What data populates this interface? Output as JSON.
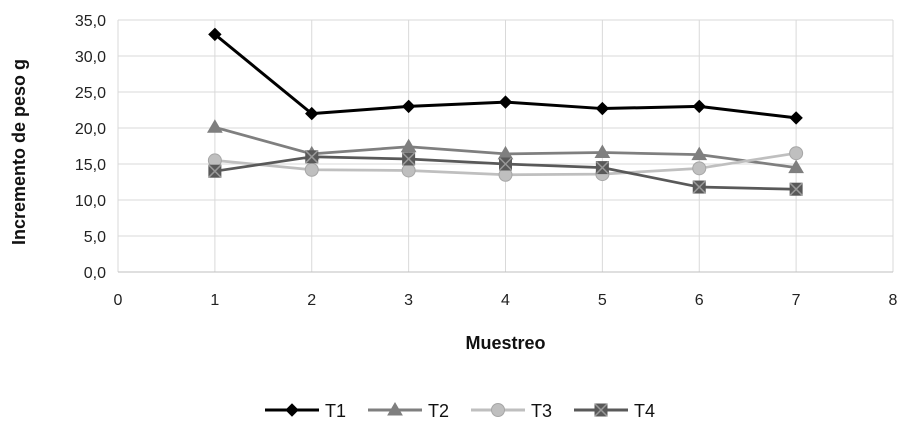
{
  "chart_data": {
    "type": "line",
    "title": "",
    "xlabel": "Muestreo",
    "ylabel": "Incremento de peso g",
    "xlim": [
      0,
      8
    ],
    "ylim": [
      0,
      35
    ],
    "x_ticks": [
      "0",
      "1",
      "2",
      "3",
      "4",
      "5",
      "6",
      "7",
      "8"
    ],
    "y_ticks": [
      "0,0",
      "5,0",
      "10,0",
      "15,0",
      "20,0",
      "25,0",
      "30,0",
      "35,0"
    ],
    "grid": true,
    "legend_position": "bottom",
    "x": [
      1,
      2,
      3,
      4,
      5,
      6,
      7
    ],
    "series": [
      {
        "name": "T1",
        "color": "#000000",
        "marker": "diamond",
        "values": [
          33.0,
          22.0,
          23.0,
          23.6,
          22.7,
          23.0,
          21.4
        ]
      },
      {
        "name": "T2",
        "color": "#7f7f7f",
        "marker": "triangle",
        "values": [
          20.1,
          16.4,
          17.4,
          16.4,
          16.6,
          16.3,
          14.5
        ]
      },
      {
        "name": "T3",
        "color": "#bfbfbf",
        "marker": "circle",
        "values": [
          15.5,
          14.2,
          14.1,
          13.5,
          13.6,
          14.4,
          16.5
        ]
      },
      {
        "name": "T4",
        "color": "#595959",
        "marker": "x-square",
        "values": [
          14.0,
          16.0,
          15.7,
          15.0,
          14.5,
          11.8,
          11.5
        ]
      }
    ]
  }
}
